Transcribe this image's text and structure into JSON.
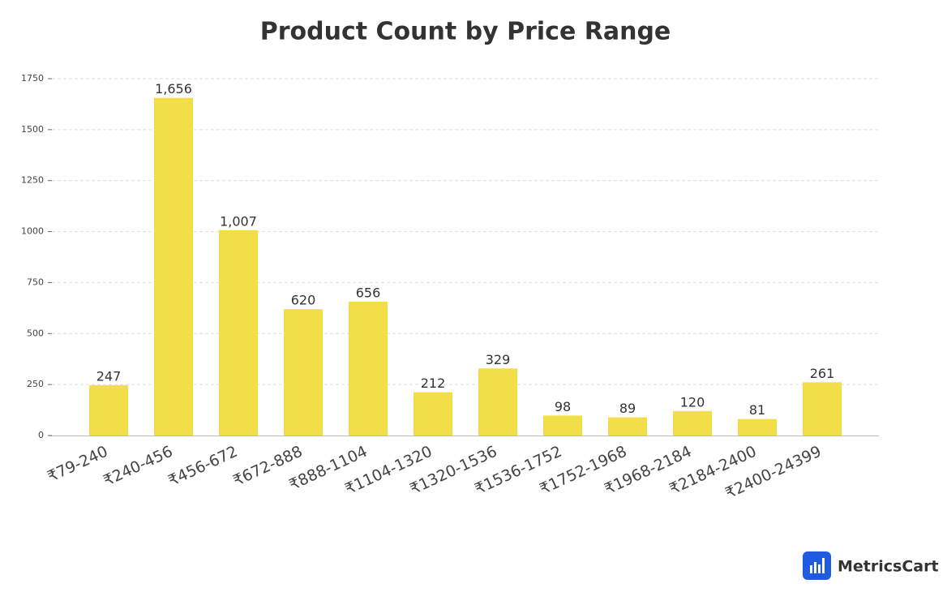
{
  "chart_data": {
    "type": "bar",
    "title": "Product Count by Price Range",
    "categories": [
      "₹79-240",
      "₹240-456",
      "₹456-672",
      "₹672-888",
      "₹888-1104",
      "₹1104-1320",
      "₹1320-1536",
      "₹1536-1752",
      "₹1752-1968",
      "₹1968-2184",
      "₹2184-2400",
      "₹2400-24399"
    ],
    "values": [
      247,
      1656,
      1007,
      620,
      656,
      212,
      329,
      98,
      89,
      120,
      81,
      261
    ],
    "value_labels": [
      "247",
      "1,656",
      "1,007",
      "620",
      "656",
      "212",
      "329",
      "98",
      "89",
      "120",
      "81",
      "261"
    ],
    "color": "#f2de46",
    "ylim": [
      0,
      1750
    ],
    "yticks": [
      0,
      250,
      500,
      750,
      1000,
      1250,
      1500,
      1750
    ],
    "grid": true
  },
  "brand": "MetricsCart"
}
